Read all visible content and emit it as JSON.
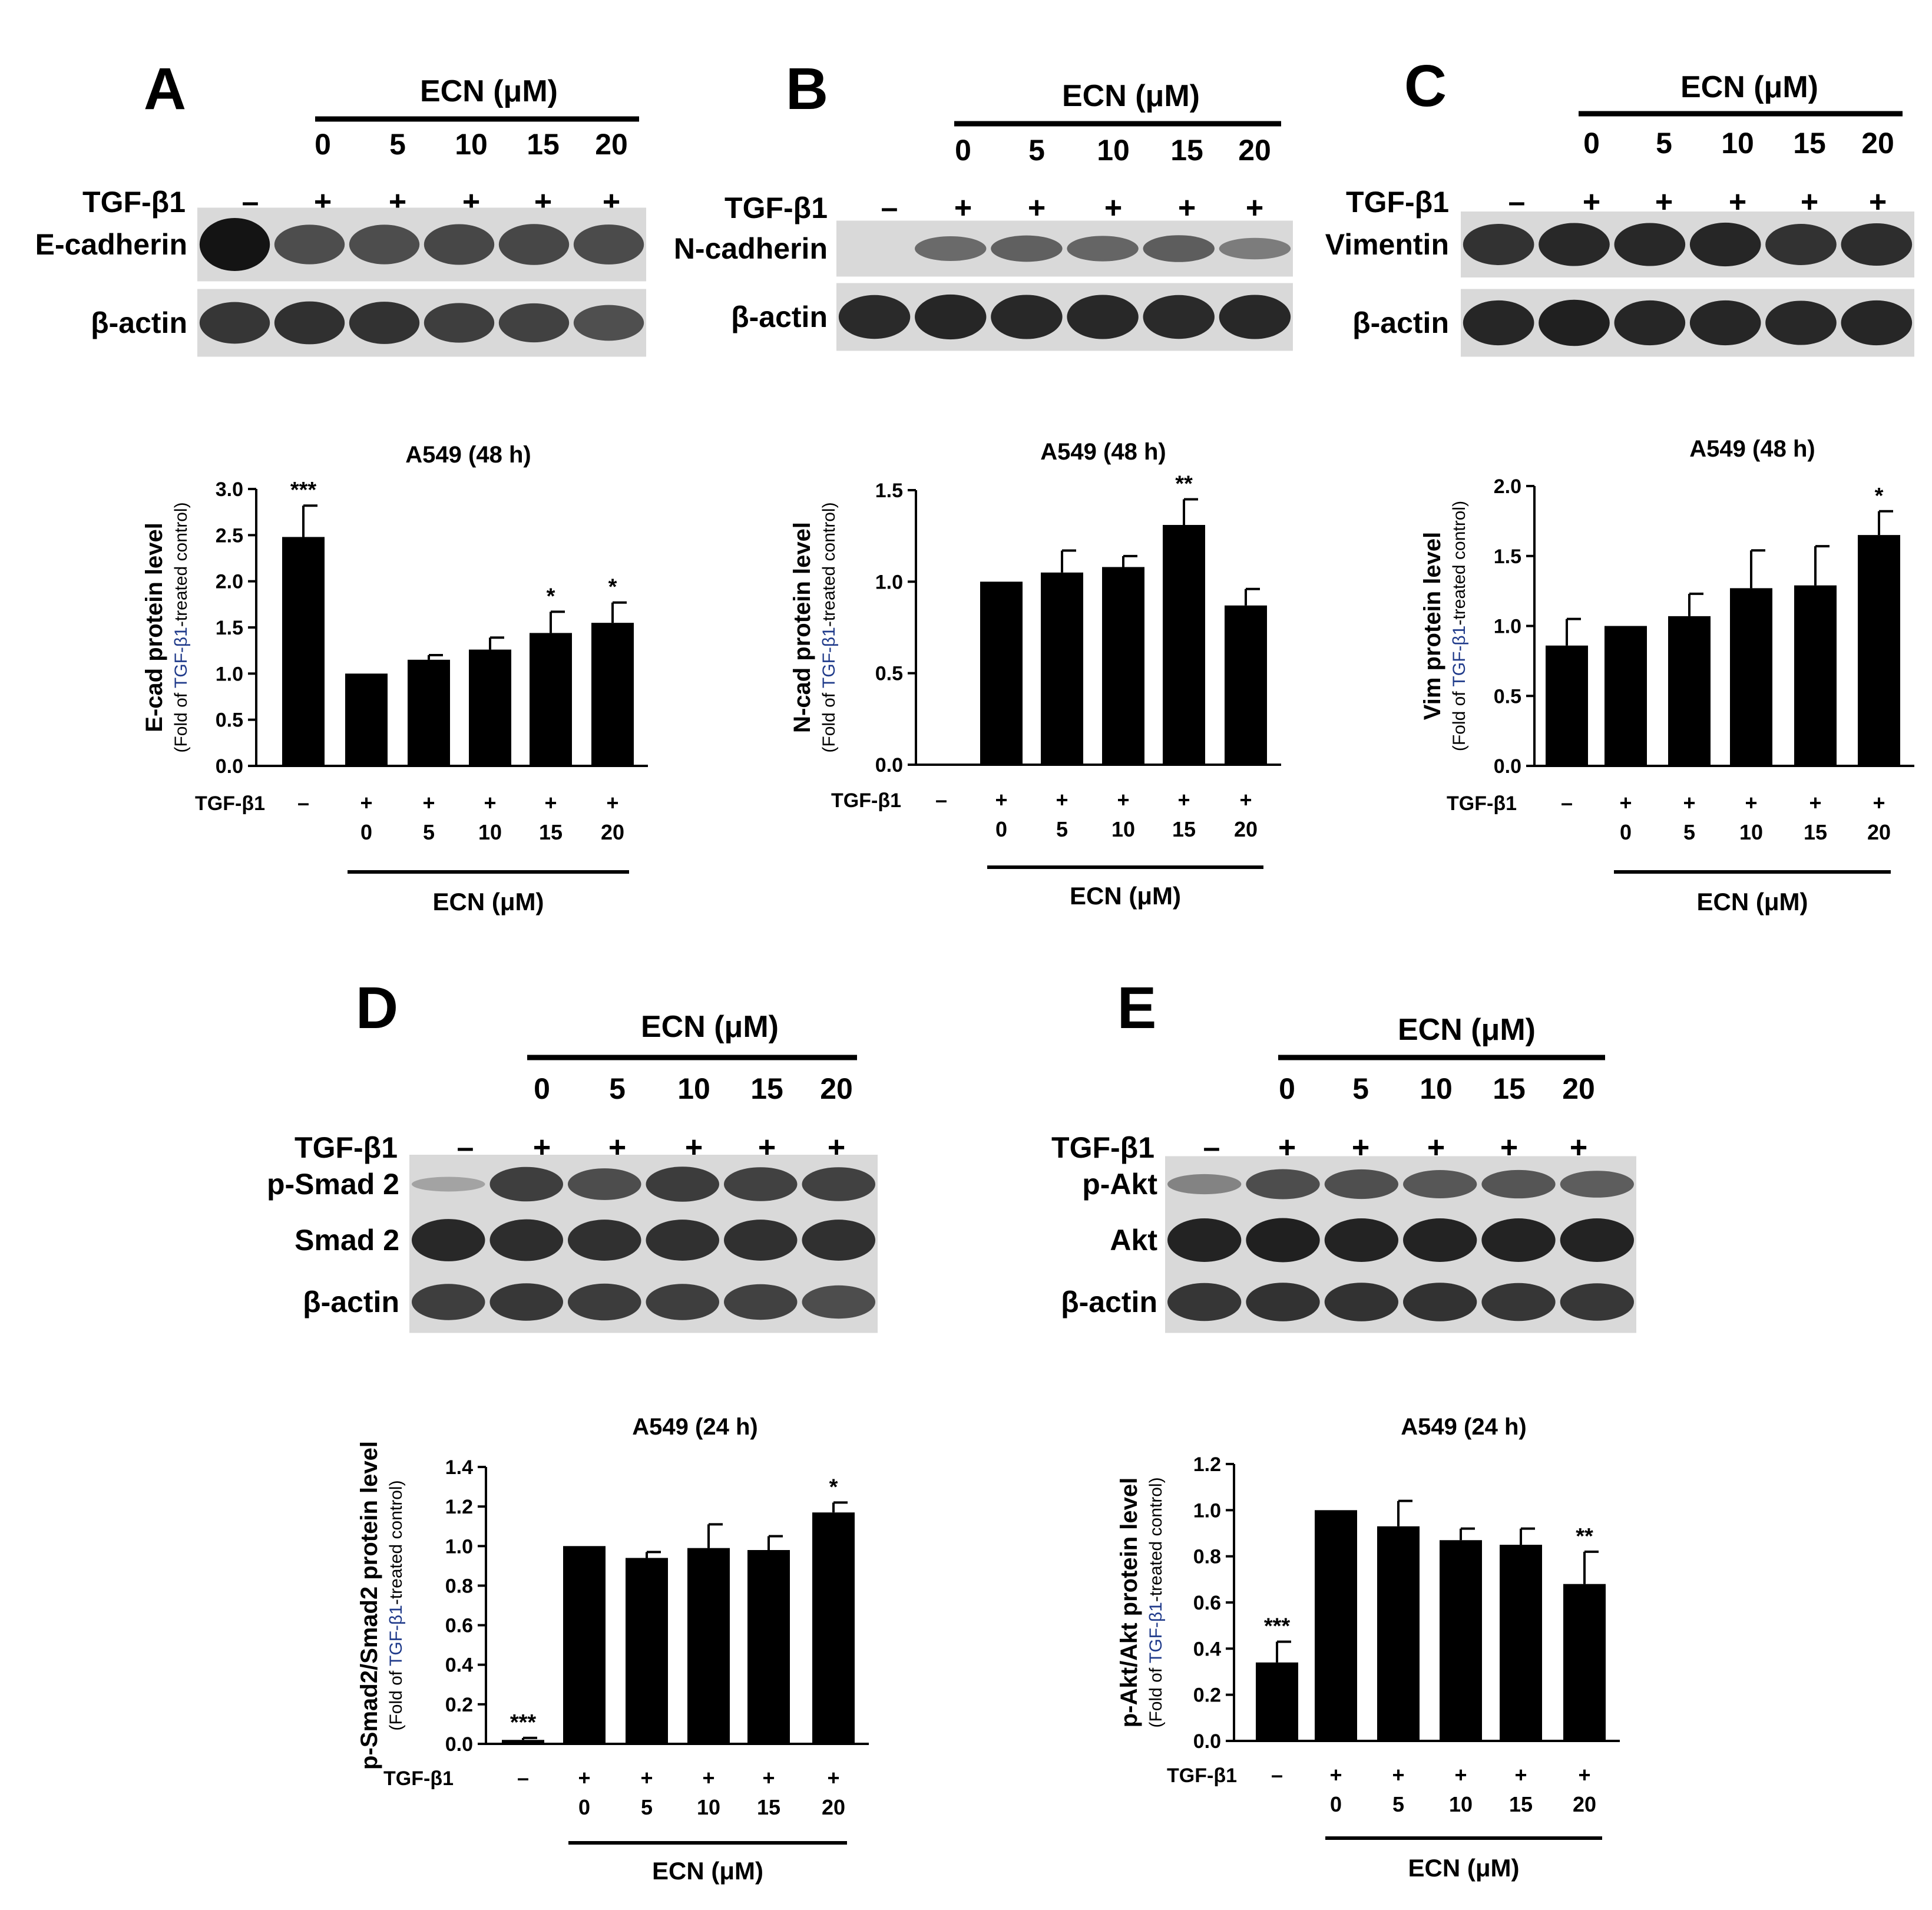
{
  "figure": {
    "ecn_header": "ECN (μM)",
    "tgf_label": "TGF-β1",
    "dose_labels": [
      "0",
      "5",
      "10",
      "15",
      "20"
    ],
    "tgf_signs": [
      "–",
      "+",
      "+",
      "+",
      "+",
      "+"
    ],
    "y_sub_parts": [
      "(Fold of ",
      "TGF-β1",
      "-treated control)"
    ],
    "band_color": "#141414",
    "blot_bg": "#d9d9d9"
  },
  "panels": [
    {
      "letter": "A",
      "blots": [
        {
          "label": "E-cadherin",
          "intensity": [
            1.0,
            0.62,
            0.62,
            0.65,
            0.66,
            0.63
          ]
        },
        {
          "label": "β-actin",
          "intensity": [
            0.78,
            0.82,
            0.8,
            0.72,
            0.7,
            0.6
          ]
        }
      ],
      "chart_title": "A549 (48 h)",
      "y_axis_label": "E-cad protein level"
    },
    {
      "letter": "B",
      "blots": [
        {
          "label": "N-cadherin",
          "intensity": [
            0.0,
            0.42,
            0.48,
            0.45,
            0.5,
            0.3
          ]
        },
        {
          "label": "β-actin",
          "intensity": [
            0.85,
            0.88,
            0.86,
            0.86,
            0.85,
            0.86
          ]
        }
      ],
      "chart_title": "A549 (48 h)",
      "y_axis_label": "N-cad protein level"
    },
    {
      "letter": "C",
      "blots": [
        {
          "label": "Vimentin",
          "intensity": [
            0.8,
            0.86,
            0.86,
            0.88,
            0.8,
            0.84
          ]
        },
        {
          "label": "β-actin",
          "intensity": [
            0.88,
            0.92,
            0.88,
            0.88,
            0.86,
            0.88
          ]
        }
      ],
      "chart_title": "A549 (48 h)",
      "y_axis_label": "Vim protein level"
    },
    {
      "letter": "D",
      "blots": [
        {
          "label": "p-Smad 2",
          "intensity": [
            0.02,
            0.72,
            0.62,
            0.74,
            0.7,
            0.7
          ]
        },
        {
          "label": "Smad 2",
          "intensity": [
            0.86,
            0.84,
            0.82,
            0.82,
            0.82,
            0.82
          ]
        },
        {
          "label": "β-actin",
          "intensity": [
            0.72,
            0.76,
            0.74,
            0.72,
            0.7,
            0.62
          ]
        }
      ],
      "chart_title": "A549 (24 h)",
      "y_axis_label": "p-Smad2/Smad2 protein level"
    },
    {
      "letter": "E",
      "blots": [
        {
          "label": "p-Akt",
          "intensity": [
            0.25,
            0.62,
            0.6,
            0.55,
            0.56,
            0.5
          ]
        },
        {
          "label": "Akt",
          "intensity": [
            0.9,
            0.92,
            0.9,
            0.9,
            0.9,
            0.9
          ]
        },
        {
          "label": "β-actin",
          "intensity": [
            0.78,
            0.8,
            0.8,
            0.8,
            0.78,
            0.76
          ]
        }
      ],
      "chart_title": "A549 (24 h)",
      "y_axis_label": "p-Akt/Akt protein level"
    }
  ],
  "chart_data": [
    {
      "type": "bar",
      "panel": "A",
      "title": "A549 (48 h)",
      "ylabel": "E-cad protein level",
      "ylim": [
        0,
        3.0
      ],
      "yticks": [
        "0.0",
        "0.5",
        "1.0",
        "1.5",
        "2.0",
        "2.5",
        "3.0"
      ],
      "values": [
        2.48,
        1.0,
        1.15,
        1.26,
        1.44,
        1.55
      ],
      "errors": [
        0.34,
        0.0,
        0.05,
        0.13,
        0.23,
        0.22
      ],
      "significance": [
        "***",
        "",
        "",
        "",
        "*",
        "*"
      ]
    },
    {
      "type": "bar",
      "panel": "B",
      "title": "A549 (48 h)",
      "ylabel": "N-cad protein level",
      "ylim": [
        0,
        1.5
      ],
      "yticks": [
        "0.0",
        "0.5",
        "1.0",
        "1.5"
      ],
      "values": [
        0.0,
        1.0,
        1.05,
        1.08,
        1.31,
        0.87
      ],
      "errors": [
        0.0,
        0.0,
        0.12,
        0.06,
        0.14,
        0.09
      ],
      "significance": [
        "",
        "",
        "",
        "",
        "**",
        ""
      ]
    },
    {
      "type": "bar",
      "panel": "C",
      "title": "A549 (48 h)",
      "ylabel": "Vim protein level",
      "ylim": [
        0,
        2.0
      ],
      "yticks": [
        "0.0",
        "0.5",
        "1.0",
        "1.5",
        "2.0"
      ],
      "values": [
        0.86,
        1.0,
        1.07,
        1.27,
        1.29,
        1.65
      ],
      "errors": [
        0.19,
        0.0,
        0.16,
        0.27,
        0.28,
        0.17
      ],
      "significance": [
        "",
        "",
        "",
        "",
        "",
        "*"
      ]
    },
    {
      "type": "bar",
      "panel": "D",
      "title": "A549 (24 h)",
      "ylabel": "p-Smad2/Smad2 protein level",
      "ylim": [
        0,
        1.4
      ],
      "yticks": [
        "0.0",
        "0.2",
        "0.4",
        "0.6",
        "0.8",
        "1.0",
        "1.2",
        "1.4"
      ],
      "values": [
        0.02,
        1.0,
        0.94,
        0.99,
        0.98,
        1.17
      ],
      "errors": [
        0.01,
        0.0,
        0.03,
        0.12,
        0.07,
        0.05
      ],
      "significance": [
        "***",
        "",
        "",
        "",
        "",
        "*"
      ]
    },
    {
      "type": "bar",
      "panel": "E",
      "title": "A549 (24 h)",
      "ylabel": "p-Akt/Akt protein level",
      "ylim": [
        0,
        1.2
      ],
      "yticks": [
        "0.0",
        "0.2",
        "0.4",
        "0.6",
        "0.8",
        "1.0",
        "1.2"
      ],
      "values": [
        0.34,
        1.0,
        0.93,
        0.87,
        0.85,
        0.68
      ],
      "errors": [
        0.09,
        0.0,
        0.11,
        0.05,
        0.07,
        0.14
      ],
      "significance": [
        "***",
        "",
        "",
        "",
        "",
        "**"
      ]
    }
  ]
}
